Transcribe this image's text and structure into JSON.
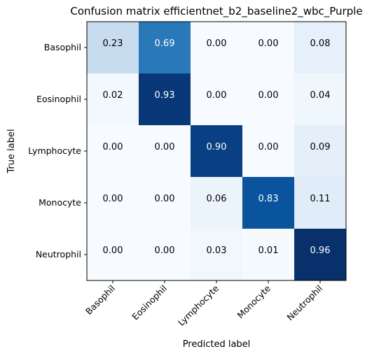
{
  "chart_data": {
    "type": "heatmap",
    "title": "Confusion matrix efficientnet_b2_baseline2_wbc_Purple",
    "xlabel": "Predicted label",
    "ylabel": "True label",
    "x_categories": [
      "Basophil",
      "Eosinophil",
      "Lymphocyte",
      "Monocyte",
      "Neutrophil"
    ],
    "y_categories": [
      "Basophil",
      "Eosinophil",
      "Lymphocyte",
      "Monocyte",
      "Neutrophil"
    ],
    "values": [
      [
        0.23,
        0.69,
        0.0,
        0.0,
        0.08
      ],
      [
        0.02,
        0.93,
        0.0,
        0.0,
        0.04
      ],
      [
        0.0,
        0.0,
        0.9,
        0.0,
        0.09
      ],
      [
        0.0,
        0.0,
        0.06,
        0.83,
        0.11
      ],
      [
        0.0,
        0.0,
        0.03,
        0.01,
        0.96
      ]
    ],
    "value_labels": [
      [
        "0.23",
        "0.69",
        "0.00",
        "0.00",
        "0.08"
      ],
      [
        "0.02",
        "0.93",
        "0.00",
        "0.00",
        "0.04"
      ],
      [
        "0.00",
        "0.00",
        "0.90",
        "0.00",
        "0.09"
      ],
      [
        "0.00",
        "0.00",
        "0.06",
        "0.83",
        "0.11"
      ],
      [
        "0.00",
        "0.00",
        "0.03",
        "0.01",
        "0.96"
      ]
    ],
    "colormap": "Blues",
    "color_range": [
      0,
      0.96
    ],
    "colors": {
      "low": "#f7fbff",
      "high": "#08306b",
      "text_dark": "#000000",
      "text_light": "#ffffff"
    },
    "grid": false,
    "legend": "none",
    "x_tick_rotation_deg": 45
  }
}
